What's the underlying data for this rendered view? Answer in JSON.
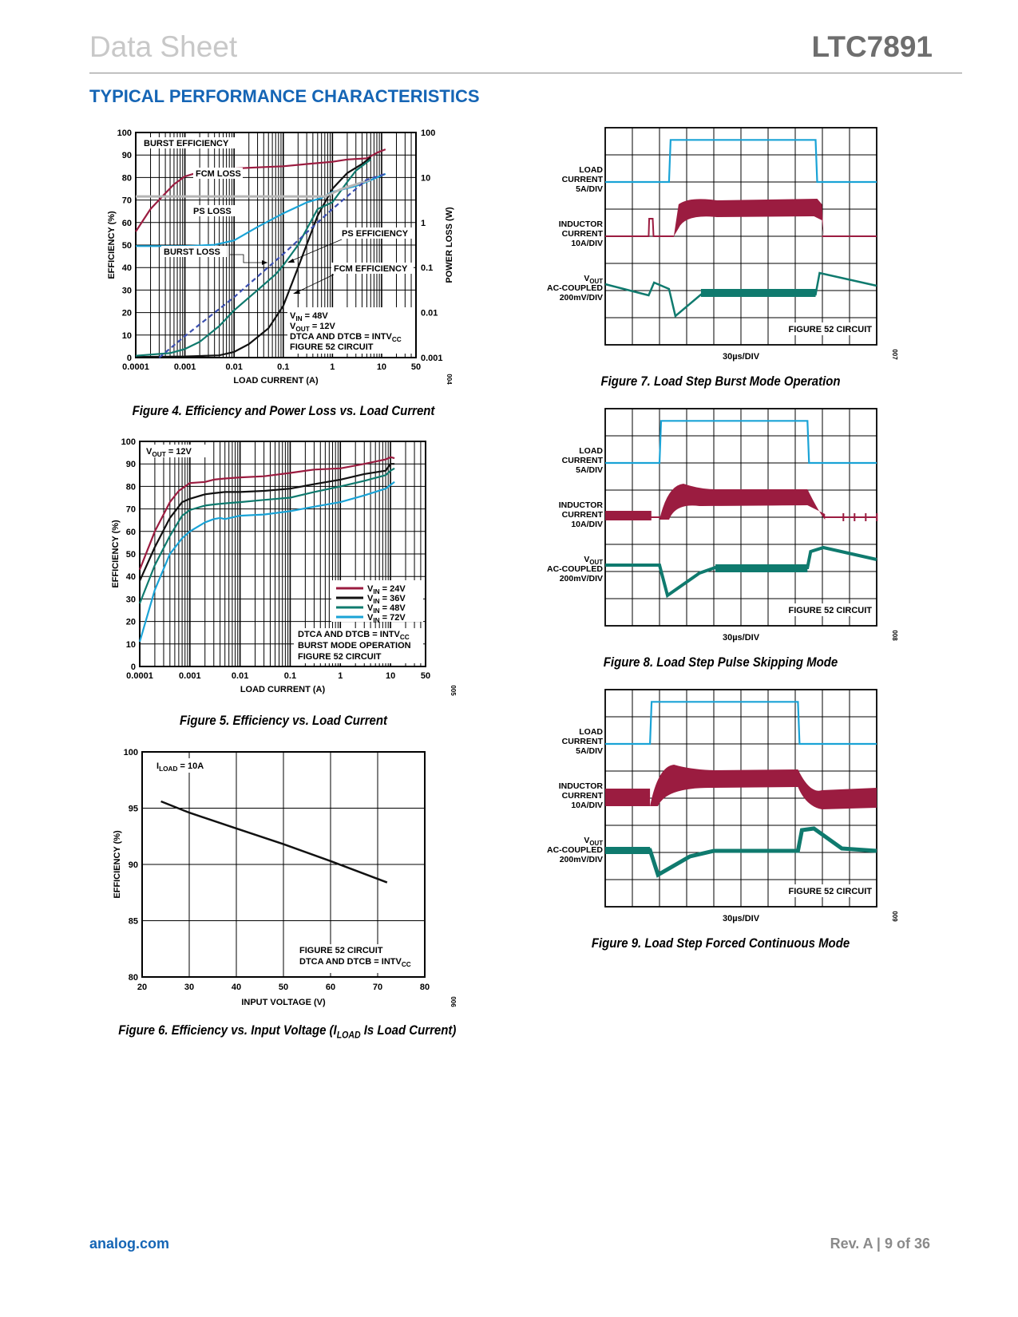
{
  "header": {
    "left": "Data Sheet",
    "right": "LTC7891"
  },
  "section_title": "TYPICAL PERFORMANCE CHARACTERISTICS",
  "footer": {
    "left": "analog.com",
    "right": "Rev. A | 9 of 36"
  },
  "colors": {
    "burst": "#9b1c40",
    "black": "#111111",
    "teal": "#0f7a6e",
    "blue": "#1aa3d6",
    "dashed": "#3b4fb0",
    "gray": "#b5b5b5",
    "accent": "#1565b5"
  },
  "chart_data": [
    {
      "id": "fig4",
      "type": "line",
      "caption": "Figure 4. Efficiency and Power Loss vs. Load Current",
      "fig_number": "004",
      "xlabel": "LOAD CURRENT (A)",
      "ylabel": "EFFICIENCY (%)",
      "y2label": "POWER LOSS (W)",
      "xscale": "log",
      "xlim": [
        0.0001,
        50
      ],
      "ylim": [
        0,
        100
      ],
      "y2lim": [
        0.001,
        100
      ],
      "xticks": [
        "0.0001",
        "0.001",
        "0.01",
        "0.1",
        "1",
        "10",
        "50"
      ],
      "yticks": [
        "0",
        "10",
        "20",
        "30",
        "40",
        "50",
        "60",
        "70",
        "80",
        "90",
        "100"
      ],
      "y2ticks": [
        "0.001",
        "0.01",
        "0.1",
        "1",
        "10",
        "100"
      ],
      "annotations": {
        "burst_eff": "BURST EFFICIENCY",
        "fcm_loss": "FCM LOSS",
        "ps_loss": "PS LOSS",
        "burst_loss": "BURST LOSS",
        "ps_eff": "PS EFFICIENCY",
        "fcm_eff": "FCM EFFICIENCY",
        "cond1": "V",
        "cond1_sub": "IN",
        "cond1_val": " = 48V",
        "cond2": "V",
        "cond2_sub": "OUT",
        "cond2_val": " = 12V",
        "cond3": "DTCA AND DTCB =  INTV",
        "cond3_sub": "CC",
        "cond4": "FIGURE 52 CIRCUIT"
      },
      "series": [
        {
          "name": "BURST EFFICIENCY",
          "axis": "left",
          "color": "#9b1c40",
          "x": [
            0.0001,
            0.0002,
            0.0004,
            0.0006,
            0.001,
            0.002,
            0.004,
            0.01,
            0.03,
            0.1,
            0.3,
            1,
            2,
            5,
            8,
            12
          ],
          "y": [
            56,
            66,
            73,
            77,
            80.5,
            82.5,
            83.3,
            84,
            84.5,
            85,
            86,
            87,
            88,
            88.5,
            91,
            92.5
          ]
        },
        {
          "name": "FCM EFFICIENCY",
          "axis": "left",
          "color": "#111111",
          "x": [
            0.0001,
            0.001,
            0.005,
            0.01,
            0.02,
            0.05,
            0.1,
            0.2,
            0.5,
            1,
            2,
            4,
            6
          ],
          "y": [
            0.3,
            0.5,
            1,
            2.5,
            6,
            13,
            23,
            40,
            63,
            75,
            82,
            86,
            89
          ]
        },
        {
          "name": "PS EFFICIENCY",
          "axis": "left",
          "color": "#0f7a6e",
          "x": [
            0.0001,
            0.0005,
            0.001,
            0.002,
            0.005,
            0.01,
            0.03,
            0.07,
            0.1,
            0.2,
            0.5,
            1,
            2,
            3,
            6
          ],
          "y": [
            0.8,
            2,
            3.8,
            7,
            14,
            21,
            30,
            37,
            41,
            50,
            66,
            69,
            78,
            83,
            88
          ]
        },
        {
          "name": "PS LOSS",
          "axis": "right",
          "color": "#1aa3d6",
          "x": [
            0.0001,
            0.001,
            0.004,
            0.01,
            0.03,
            0.1,
            0.3,
            0.6,
            1,
            3,
            5,
            8,
            12
          ],
          "y": [
            0.3,
            0.3,
            0.32,
            0.4,
            0.8,
            1.6,
            2.8,
            3.5,
            4.8,
            6.5,
            8,
            10,
            12
          ]
        },
        {
          "name": "FCM LOSS",
          "axis": "right",
          "color": "#b5b5b5",
          "x": [
            0.0001,
            0.7,
            1.5,
            3,
            6
          ],
          "y": [
            3.8,
            3.8,
            5.5,
            7,
            9
          ]
        },
        {
          "name": "BURST LOSS",
          "axis": "right",
          "color": "#3b4fb0",
          "dashed": true,
          "x": [
            0.0003,
            0.001,
            0.01,
            0.1,
            1,
            5,
            12
          ],
          "y": [
            0.001,
            0.003,
            0.022,
            0.2,
            2,
            9,
            12
          ]
        }
      ]
    },
    {
      "id": "fig5",
      "type": "line",
      "caption": "Figure 5. Efficiency vs. Load Current",
      "fig_number": "005",
      "xlabel": "LOAD CURRENT (A)",
      "ylabel": "EFFICIENCY (%)",
      "xscale": "log",
      "xlim": [
        0.0001,
        50
      ],
      "ylim": [
        0,
        100
      ],
      "xticks": [
        "0.0001",
        "0.001",
        "0.01",
        "0.1",
        "1",
        "10",
        "50"
      ],
      "yticks": [
        "0",
        "10",
        "20",
        "30",
        "40",
        "50",
        "60",
        "70",
        "80",
        "90",
        "100"
      ],
      "annotations": {
        "vout": "V",
        "vout_sub": "OUT",
        "vout_val": " = 12V",
        "note1": "DTCA AND DTCB = INTV",
        "note1_sub": "CC",
        "note2": "BURST MODE OPERATION",
        "note3": "FIGURE 52 CIRCUIT"
      },
      "legend_position": "bottom-right",
      "series": [
        {
          "name": "VIN = 24V",
          "label": "V",
          "label_sub": "IN",
          "label_val": " = 24V",
          "color": "#9b1c40",
          "x": [
            0.0001,
            0.0002,
            0.0004,
            0.0006,
            0.001,
            0.002,
            0.003,
            0.005,
            0.01,
            0.03,
            0.1,
            0.3,
            1,
            3,
            8,
            10,
            12
          ],
          "y": [
            43,
            60,
            73,
            78,
            81.5,
            82,
            83,
            83.5,
            84,
            84.5,
            86,
            87.5,
            88,
            90,
            92,
            93,
            92.5
          ]
        },
        {
          "name": "VIN = 36V",
          "label": "V",
          "label_sub": "IN",
          "label_val": " = 36V",
          "color": "#111111",
          "x": [
            0.0001,
            0.0002,
            0.0004,
            0.0007,
            0.001,
            0.002,
            0.003,
            0.005,
            0.01,
            0.03,
            0.1,
            0.3,
            1,
            3,
            8,
            10,
            12
          ],
          "y": [
            38,
            53,
            66,
            73,
            74.5,
            76.5,
            77,
            77.5,
            77.5,
            78,
            79,
            81,
            83,
            85.5,
            87,
            90,
            90
          ]
        },
        {
          "name": "VIN = 48V",
          "label": "V",
          "label_sub": "IN",
          "label_val": " = 48V",
          "color": "#0f7a6e",
          "x": [
            0.0001,
            0.0002,
            0.0004,
            0.0007,
            0.001,
            0.002,
            0.003,
            0.005,
            0.01,
            0.03,
            0.1,
            0.3,
            1,
            3,
            8,
            10,
            12
          ],
          "y": [
            28,
            45,
            58,
            67,
            69.5,
            71.5,
            72,
            72.5,
            73,
            74,
            75,
            77.5,
            80,
            82.5,
            85,
            87,
            88
          ]
        },
        {
          "name": "VIN = 72V",
          "label": "V",
          "label_sub": "IN",
          "label_val": " = 72V",
          "color": "#1aa3d6",
          "x": [
            0.0001,
            0.0002,
            0.0004,
            0.0007,
            0.001,
            0.002,
            0.003,
            0.004,
            0.005,
            0.01,
            0.03,
            0.1,
            0.3,
            1,
            3,
            8,
            12
          ],
          "y": [
            11,
            34,
            50,
            57,
            60,
            64,
            65.5,
            66,
            65.5,
            67,
            67.5,
            69,
            71,
            73,
            76,
            79,
            82
          ]
        }
      ]
    },
    {
      "id": "fig6",
      "type": "line",
      "caption": "Figure 6. Efficiency vs. Input Voltage (I",
      "caption_sub": "LOAD",
      "caption_end": " Is Load Current)",
      "fig_number": "006",
      "xlabel": "INPUT VOLTAGE (V)",
      "ylabel": "EFFICIENCY (%)",
      "xlim": [
        20,
        80
      ],
      "ylim": [
        80,
        100
      ],
      "xticks": [
        "20",
        "30",
        "40",
        "50",
        "60",
        "70",
        "80"
      ],
      "yticks": [
        "80",
        "85",
        "90",
        "95",
        "100"
      ],
      "annotations": {
        "iload": "I",
        "iload_sub": "LOAD",
        "iload_val": " = 10A",
        "note1": "FIGURE 52 CIRCUIT",
        "note2": "DTCA AND DTCB = INTV",
        "note2_sub": "CC"
      },
      "series": [
        {
          "name": "Efficiency",
          "color": "#111111",
          "x": [
            24,
            30,
            40,
            50,
            60,
            72
          ],
          "y": [
            95.6,
            94.6,
            93.2,
            91.8,
            90.3,
            88.4
          ]
        }
      ]
    }
  ],
  "scope_plots": [
    {
      "id": "fig7",
      "caption": "Figure 7. Load Step Burst Mode Operation",
      "fig_number": "007",
      "time_label": "30µs/DIV",
      "circuit_label": "FIGURE 52 CIRCUIT",
      "channels": [
        {
          "l1": "LOAD",
          "l2": "CURRENT",
          "l3": "5A/DIV"
        },
        {
          "l1": "INDUCTOR",
          "l2": "CURRENT",
          "l3": "10A/DIV"
        },
        {
          "l1": "V",
          "l1_sub": "OUT",
          "l2": "AC-COUPLED",
          "l3": "200mV/DIV"
        }
      ]
    },
    {
      "id": "fig8",
      "caption": "Figure 8. Load Step Pulse Skipping Mode",
      "fig_number": "008",
      "time_label": "30µs/DIV",
      "circuit_label": "FIGURE 52 CIRCUIT",
      "channels": [
        {
          "l1": "LOAD",
          "l2": "CURRENT",
          "l3": "5A/DIV"
        },
        {
          "l1": "INDUCTOR",
          "l2": "CURRENT",
          "l3": "10A/DIV"
        },
        {
          "l1": "V",
          "l1_sub": "OUT",
          "l2": "AC-COUPLED",
          "l3": "200mV/DIV"
        }
      ]
    },
    {
      "id": "fig9",
      "caption": "Figure 9. Load Step Forced Continuous Mode",
      "fig_number": "009",
      "time_label": "30µs/DIV",
      "circuit_label": "FIGURE 52 CIRCUIT",
      "channels": [
        {
          "l1": "LOAD",
          "l2": "CURRENT",
          "l3": "5A/DIV"
        },
        {
          "l1": "INDUCTOR",
          "l2": "CURRENT",
          "l3": "10A/DIV"
        },
        {
          "l1": "V",
          "l1_sub": "OUT",
          "l2": "AC-COUPLED",
          "l3": "200mV/DIV"
        }
      ]
    }
  ]
}
